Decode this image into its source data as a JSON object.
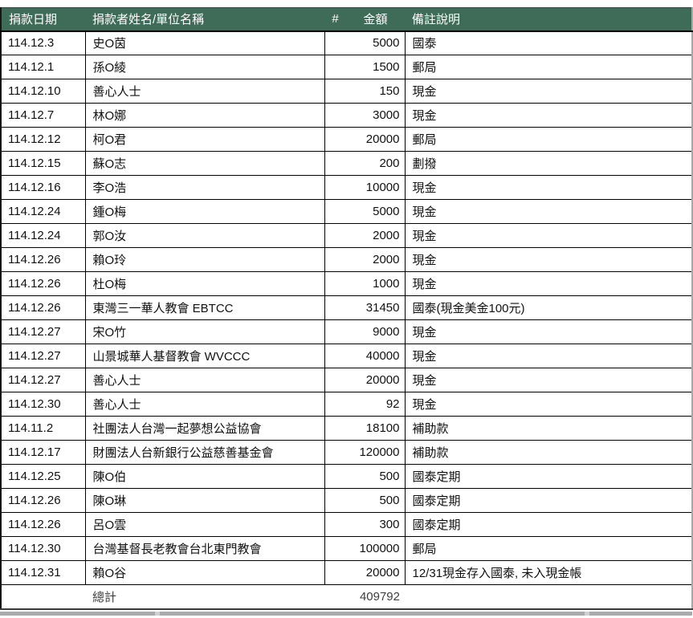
{
  "table": {
    "columns": [
      {
        "key": "date",
        "label": "捐款日期"
      },
      {
        "key": "name",
        "label": "捐款者姓名/單位名稱"
      },
      {
        "key": "num",
        "label": "#"
      },
      {
        "key": "amount",
        "label": "金額"
      },
      {
        "key": "note",
        "label": "備註說明"
      }
    ],
    "rows": [
      [
        "114.12.3",
        "史O茵",
        "",
        "5000",
        "國泰"
      ],
      [
        "114.12.1",
        "孫O綾",
        "",
        "1500",
        "郵局"
      ],
      [
        "114.12.10",
        "善心人士",
        "",
        "150",
        "現金"
      ],
      [
        "114.12.7",
        "林O娜",
        "",
        "3000",
        "現金"
      ],
      [
        "114.12.12",
        "柯O君",
        "",
        "20000",
        "郵局"
      ],
      [
        "114.12.15",
        "蘇O志",
        "",
        "200",
        "劃撥"
      ],
      [
        "114.12.16",
        "李O浩",
        "",
        "10000",
        "現金"
      ],
      [
        "114.12.24",
        "鍾O梅",
        "",
        "5000",
        "現金"
      ],
      [
        "114.12.24",
        "郭O汝",
        "",
        "2000",
        "現金"
      ],
      [
        "114.12.26",
        "賴O玲",
        "",
        "2000",
        "現金"
      ],
      [
        "114.12.26",
        "杜O梅",
        "",
        "1000",
        "現金"
      ],
      [
        "114.12.26",
        "東灣三一華人教會 EBTCC",
        "",
        "31450",
        "國泰(現金美金100元)"
      ],
      [
        "114.12.27",
        "宋O竹",
        "",
        "9000",
        "現金"
      ],
      [
        "114.12.27",
        "山景城華人基督教會 WVCCC",
        "",
        "40000",
        "現金"
      ],
      [
        "114.12.27",
        "善心人士",
        "",
        "20000",
        "現金"
      ],
      [
        "114.12.30",
        "善心人士",
        "",
        "92",
        "現金"
      ],
      [
        "114.11.2",
        "社團法人台灣一起夢想公益協會",
        "",
        "18100",
        "補助款"
      ],
      [
        "114.12.17",
        "財團法人台新銀行公益慈善基金會",
        "",
        "120000",
        "補助款"
      ],
      [
        "114.12.25",
        "陳O伯",
        "",
        "500",
        "國泰定期"
      ],
      [
        "114.12.26",
        "陳O琳",
        "",
        "500",
        "國泰定期"
      ],
      [
        "114.12.26",
        "呂O雲",
        "",
        "300",
        "國泰定期"
      ],
      [
        "114.12.30",
        "台灣基督長老教會台北東門教會",
        "",
        "100000",
        "郵局"
      ],
      [
        "114.12.31",
        "賴O谷",
        "",
        "20000",
        "12/31現金存入國泰, 未入現金帳"
      ]
    ],
    "total": {
      "label": "總計",
      "amount": "409792"
    }
  },
  "colors": {
    "header_bg": "#3e6c58",
    "header_text": "#ffffff",
    "grid_border": "#000000",
    "right_edge": "#a8a8a8",
    "total_text": "#3d3d3d",
    "bottom_bar": "#a9abae"
  }
}
